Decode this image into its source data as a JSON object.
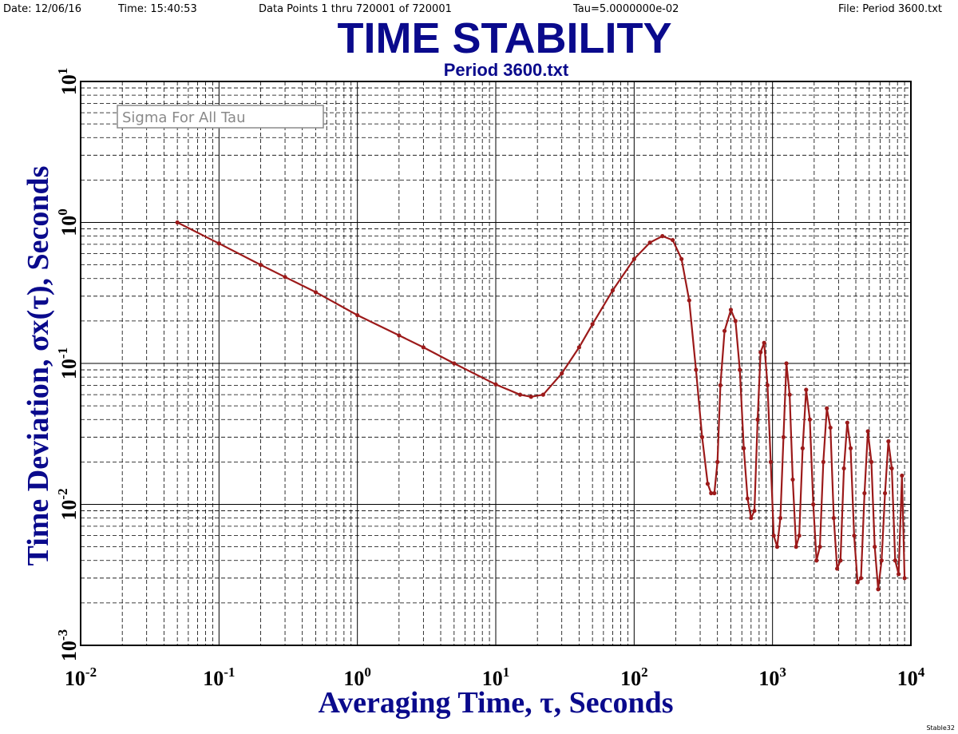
{
  "header": {
    "date": "Date: 12/06/16",
    "time": "Time: 15:40:53",
    "data_points": "Data Points 1 thru 720001 of 720001",
    "tau": "Tau=5.0000000e-02",
    "file": "File: Period 3600.txt"
  },
  "credit": "Stable32",
  "colors": {
    "title": "#0a0a8c",
    "series": "#9c1a1a",
    "grid": "#000000",
    "legend_border": "#8a8a8a"
  },
  "chart_data": {
    "type": "line",
    "title": "TIME STABILITY",
    "subtitle": "Period 3600.txt",
    "xlabel": "Averaging Time, τ, Seconds",
    "ylabel": "Time Deviation, σx(τ), Seconds",
    "xscale": "log",
    "yscale": "log",
    "xlim": [
      0.01,
      10000
    ],
    "ylim": [
      0.001,
      10
    ],
    "grid": true,
    "legend": {
      "label": "Sigma For All Tau",
      "position": "top-left"
    },
    "x_tick_labels": [
      {
        "base": "10",
        "exp": "-2"
      },
      {
        "base": "10",
        "exp": "-1"
      },
      {
        "base": "10",
        "exp": "0"
      },
      {
        "base": "10",
        "exp": "1"
      },
      {
        "base": "10",
        "exp": "2"
      },
      {
        "base": "10",
        "exp": "3"
      },
      {
        "base": "10",
        "exp": "4"
      }
    ],
    "y_tick_labels": [
      {
        "base": "10",
        "exp": "-3"
      },
      {
        "base": "10",
        "exp": "-2"
      },
      {
        "base": "10",
        "exp": "-1"
      },
      {
        "base": "10",
        "exp": "0"
      },
      {
        "base": "10",
        "exp": "1"
      }
    ],
    "series": [
      {
        "name": "Sigma For All Tau",
        "x": [
          0.05,
          0.1,
          0.2,
          0.3,
          0.5,
          1,
          2,
          3,
          5,
          10,
          15,
          18,
          22,
          30,
          40,
          50,
          70,
          100,
          130,
          160,
          190,
          220,
          250,
          280,
          310,
          340,
          360,
          380,
          400,
          420,
          450,
          500,
          540,
          580,
          620,
          660,
          700,
          740,
          780,
          820,
          870,
          920,
          970,
          1020,
          1080,
          1140,
          1200,
          1260,
          1330,
          1400,
          1480,
          1560,
          1650,
          1750,
          1860,
          1970,
          2080,
          2200,
          2330,
          2470,
          2620,
          2770,
          2930,
          3100,
          3280,
          3470,
          3670,
          3890,
          4120,
          4360,
          4620,
          4890,
          5180,
          5480,
          5800,
          6140,
          6500,
          6880,
          7280,
          7700,
          8150,
          8620,
          9000
        ],
        "y": [
          1.0,
          0.71,
          0.5,
          0.41,
          0.32,
          0.22,
          0.158,
          0.13,
          0.1,
          0.071,
          0.06,
          0.058,
          0.06,
          0.085,
          0.13,
          0.19,
          0.33,
          0.55,
          0.72,
          0.8,
          0.75,
          0.55,
          0.28,
          0.09,
          0.03,
          0.014,
          0.012,
          0.012,
          0.02,
          0.07,
          0.17,
          0.24,
          0.2,
          0.09,
          0.025,
          0.011,
          0.008,
          0.009,
          0.04,
          0.12,
          0.14,
          0.07,
          0.02,
          0.006,
          0.005,
          0.008,
          0.03,
          0.1,
          0.06,
          0.015,
          0.005,
          0.006,
          0.025,
          0.065,
          0.04,
          0.01,
          0.004,
          0.005,
          0.02,
          0.048,
          0.035,
          0.008,
          0.0035,
          0.004,
          0.018,
          0.038,
          0.025,
          0.006,
          0.0028,
          0.003,
          0.012,
          0.033,
          0.02,
          0.005,
          0.0025,
          0.004,
          0.012,
          0.028,
          0.018,
          0.004,
          0.0032,
          0.016,
          0.003
        ]
      }
    ]
  }
}
